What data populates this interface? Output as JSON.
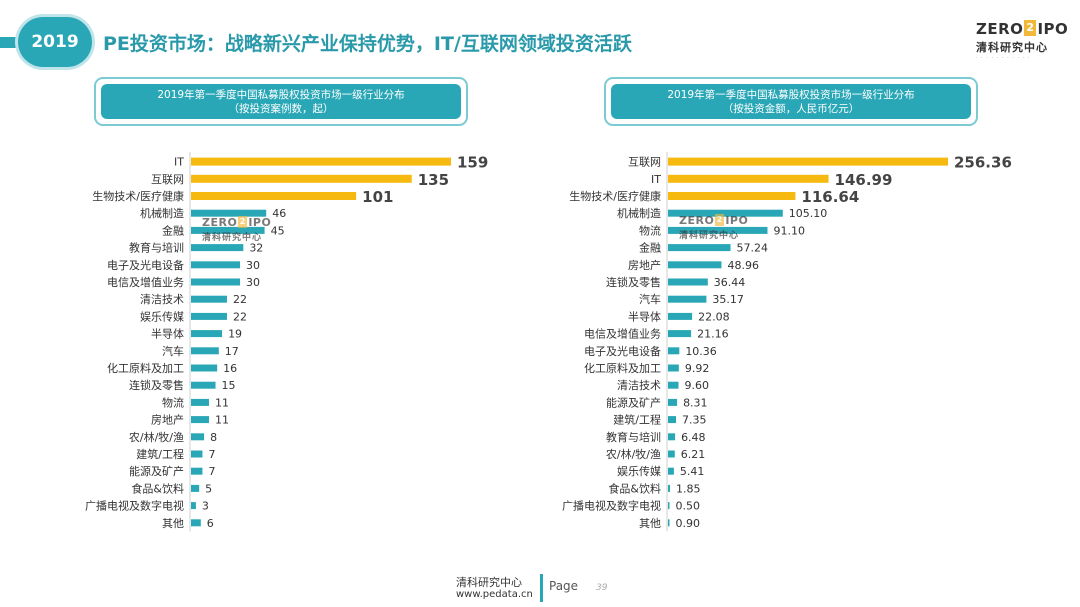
{
  "header": {
    "year": "2019",
    "title": "PE投资市场：战略新兴产业保持优势，IT/互联网领域投资活跃"
  },
  "logo": {
    "brand_left": "ZERO",
    "brand_mark": "2",
    "brand_right": "IPO",
    "subtitle": "清科研究中心"
  },
  "colors": {
    "accent": "#2aa7b6",
    "highlight": "#f5b90f",
    "bar": "#2aa7b6"
  },
  "chart_data": [
    {
      "type": "bar",
      "orientation": "horizontal",
      "title": "2019年第一季度中国私募股权投资市场一级行业分布",
      "subtitle": "（按投资案例数，起）",
      "categories": [
        "IT",
        "互联网",
        "生物技术/医疗健康",
        "机械制造",
        "金融",
        "教育与培训",
        "电子及光电设备",
        "电信及增值业务",
        "清洁技术",
        "娱乐传媒",
        "半导体",
        "汽车",
        "化工原料及加工",
        "连锁及零售",
        "物流",
        "房地产",
        "农/林/牧/渔",
        "建筑/工程",
        "能源及矿产",
        "食品&饮料",
        "广播电视及数字电视",
        "其他"
      ],
      "values": [
        159,
        135,
        101,
        46,
        45,
        32,
        30,
        30,
        22,
        22,
        19,
        17,
        16,
        15,
        11,
        11,
        8,
        7,
        7,
        5,
        3,
        6
      ],
      "labels": [
        "159",
        "135",
        "101",
        "46",
        "45",
        "32",
        "30",
        "30",
        "22",
        "22",
        "19",
        "17",
        "16",
        "15",
        "11",
        "11",
        "8",
        "7",
        "7",
        "5",
        "3",
        "6"
      ],
      "highlight_top": 3,
      "xlim": [
        0,
        159
      ]
    },
    {
      "type": "bar",
      "orientation": "horizontal",
      "title": "2019年第一季度中国私募股权投资市场一级行业分布",
      "subtitle": "（按投资金额，人民币亿元）",
      "categories": [
        "互联网",
        "IT",
        "生物技术/医疗健康",
        "机械制造",
        "物流",
        "金融",
        "房地产",
        "连锁及零售",
        "汽车",
        "半导体",
        "电信及增值业务",
        "电子及光电设备",
        "化工原料及加工",
        "清洁技术",
        "能源及矿产",
        "建筑/工程",
        "教育与培训",
        "农/林/牧/渔",
        "娱乐传媒",
        "食品&饮料",
        "广播电视及数字电视",
        "其他"
      ],
      "values": [
        256.36,
        146.99,
        116.64,
        105.1,
        91.1,
        57.24,
        48.96,
        36.44,
        35.17,
        22.08,
        21.16,
        10.36,
        9.92,
        9.6,
        8.31,
        7.35,
        6.48,
        6.21,
        5.41,
        1.85,
        0.5,
        0.9
      ],
      "labels": [
        "256.36",
        "146.99",
        "116.64",
        "105.10",
        "91.10",
        "57.24",
        "48.96",
        "36.44",
        "35.17",
        "22.08",
        "21.16",
        "10.36",
        "9.92",
        "9.60",
        "8.31",
        "7.35",
        "6.48",
        "6.21",
        "5.41",
        "1.85",
        "0.50",
        "0.90"
      ],
      "highlight_top": 3,
      "xlim": [
        0,
        256.36
      ]
    }
  ],
  "footer": {
    "org": "清科研究中心",
    "url": "www.pedata.cn",
    "page_label": "Page",
    "page_number": "39"
  }
}
